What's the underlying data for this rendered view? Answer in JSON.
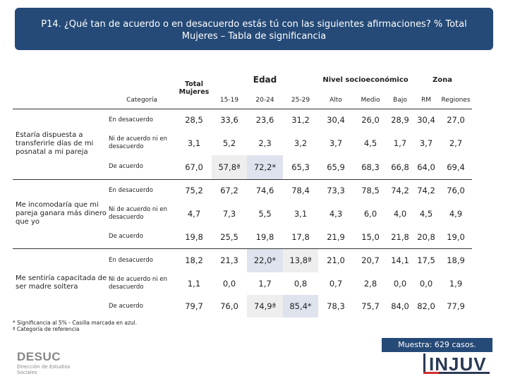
{
  "header": {
    "line1": "P14. ¿Qué tan de acuerdo o en desacuerdo estás tú con las siguientes afirmaciones? % Total",
    "line2": "Mujeres – Tabla de significancia"
  },
  "table": {
    "total_label": "Total Mujeres",
    "categoria_label": "Categoría",
    "groups": {
      "edad": "Edad",
      "nse": "Nivel socioeconómico",
      "zona": "Zona"
    },
    "subheaders": [
      "15-19",
      "20-24",
      "25-29",
      "Alto",
      "Medio",
      "Bajo",
      "RM",
      "Regiones"
    ],
    "sections": [
      {
        "label": "Estaría dispuesta a transferirle días de mi posnatal a mi pareja",
        "rows": [
          {
            "resp": "En desacuerdo",
            "values": [
              "28,5",
              "33,6",
              "23,6",
              "31,2",
              "30,4",
              "26,0",
              "28,9",
              "30,4",
              "27,0"
            ]
          },
          {
            "resp": "Ni de acuerdo ni en desacuerdo",
            "values": [
              "3,1",
              "5,2",
              "2,3",
              "3,2",
              "3,7",
              "4,5",
              "1,7",
              "3,7",
              "2,7"
            ]
          },
          {
            "resp": "De acuerdo",
            "values": [
              "67,0",
              "57,8ª",
              "72,2*",
              "65,3",
              "65,9",
              "68,3",
              "66,8",
              "64,0",
              "69,4"
            ]
          }
        ]
      },
      {
        "label": "Me incomodaría que mi pareja ganara más dinero que yo",
        "rows": [
          {
            "resp": "En desacuerdo",
            "values": [
              "75,2",
              "67,2",
              "74,6",
              "78,4",
              "73,3",
              "78,5",
              "74,2",
              "74,2",
              "76,0"
            ]
          },
          {
            "resp": "Ni de acuerdo ni en desacuerdo",
            "values": [
              "4,7",
              "7,3",
              "5,5",
              "3,1",
              "4,3",
              "6,0",
              "4,0",
              "4,5",
              "4,9"
            ]
          },
          {
            "resp": "De acuerdo",
            "values": [
              "19,8",
              "25,5",
              "19,8",
              "17,8",
              "21,9",
              "15,0",
              "21,8",
              "20,8",
              "19,0"
            ]
          }
        ]
      },
      {
        "label": "Me sentiría capacitada de ser madre soltera",
        "rows": [
          {
            "resp": "En desacuerdo",
            "values": [
              "18,2",
              "21,3",
              "22,0*",
              "13,8ª",
              "21,0",
              "20,7",
              "14,1",
              "17,5",
              "18,9"
            ]
          },
          {
            "resp": "Ni de acuerdo ni en desacuerdo",
            "values": [
              "1,1",
              "0,0",
              "1,7",
              "0,8",
              "0,7",
              "2,8",
              "0,0",
              "0,0",
              "1,9"
            ]
          },
          {
            "resp": "De acuerdo",
            "values": [
              "79,7",
              "76,0",
              "74,9ª",
              "85,4*",
              "78,3",
              "75,7",
              "84,0",
              "82,0",
              "77,9"
            ]
          }
        ]
      }
    ]
  },
  "notes": {
    "line1": "* Significancia al 5% - Casilla marcada en azul.",
    "line2": "ª Categoría de referencia"
  },
  "sample": "Muestra: 629 casos.",
  "logos": {
    "desuc": "DESUC",
    "desuc_sub1": "Dirección de Estudios",
    "desuc_sub2": "Sociales",
    "injuv": "INJUV"
  }
}
